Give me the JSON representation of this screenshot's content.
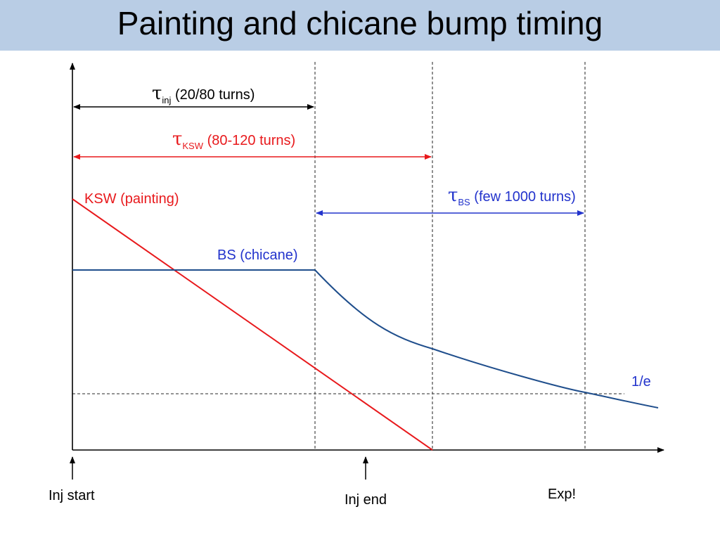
{
  "title": "Painting and chicane bump timing",
  "colors": {
    "title_band": "#b9cde5",
    "axis": "#000000",
    "ksw": "#e8191c",
    "bs_curve": "#1f4e8c",
    "bs_text": "#2233cc",
    "guide": "#555555"
  },
  "annotations": {
    "tau_symbol": "τ",
    "tau_inj_sub": "inj",
    "tau_inj_text": " (20/80 turns)",
    "tau_ksw_sub": "KSW",
    "tau_ksw_text": " (80-120 turns)",
    "tau_bs_sub": "BS",
    "tau_bs_text": " (few 1000 turns)"
  },
  "curves": {
    "ksw_label": "KSW (painting)",
    "bs_label": "BS (chicane)",
    "threshold_label": "1/e"
  },
  "markers": {
    "inj_start": "Inj start",
    "inj_end": "Inj end",
    "exp": "Exp!"
  }
}
